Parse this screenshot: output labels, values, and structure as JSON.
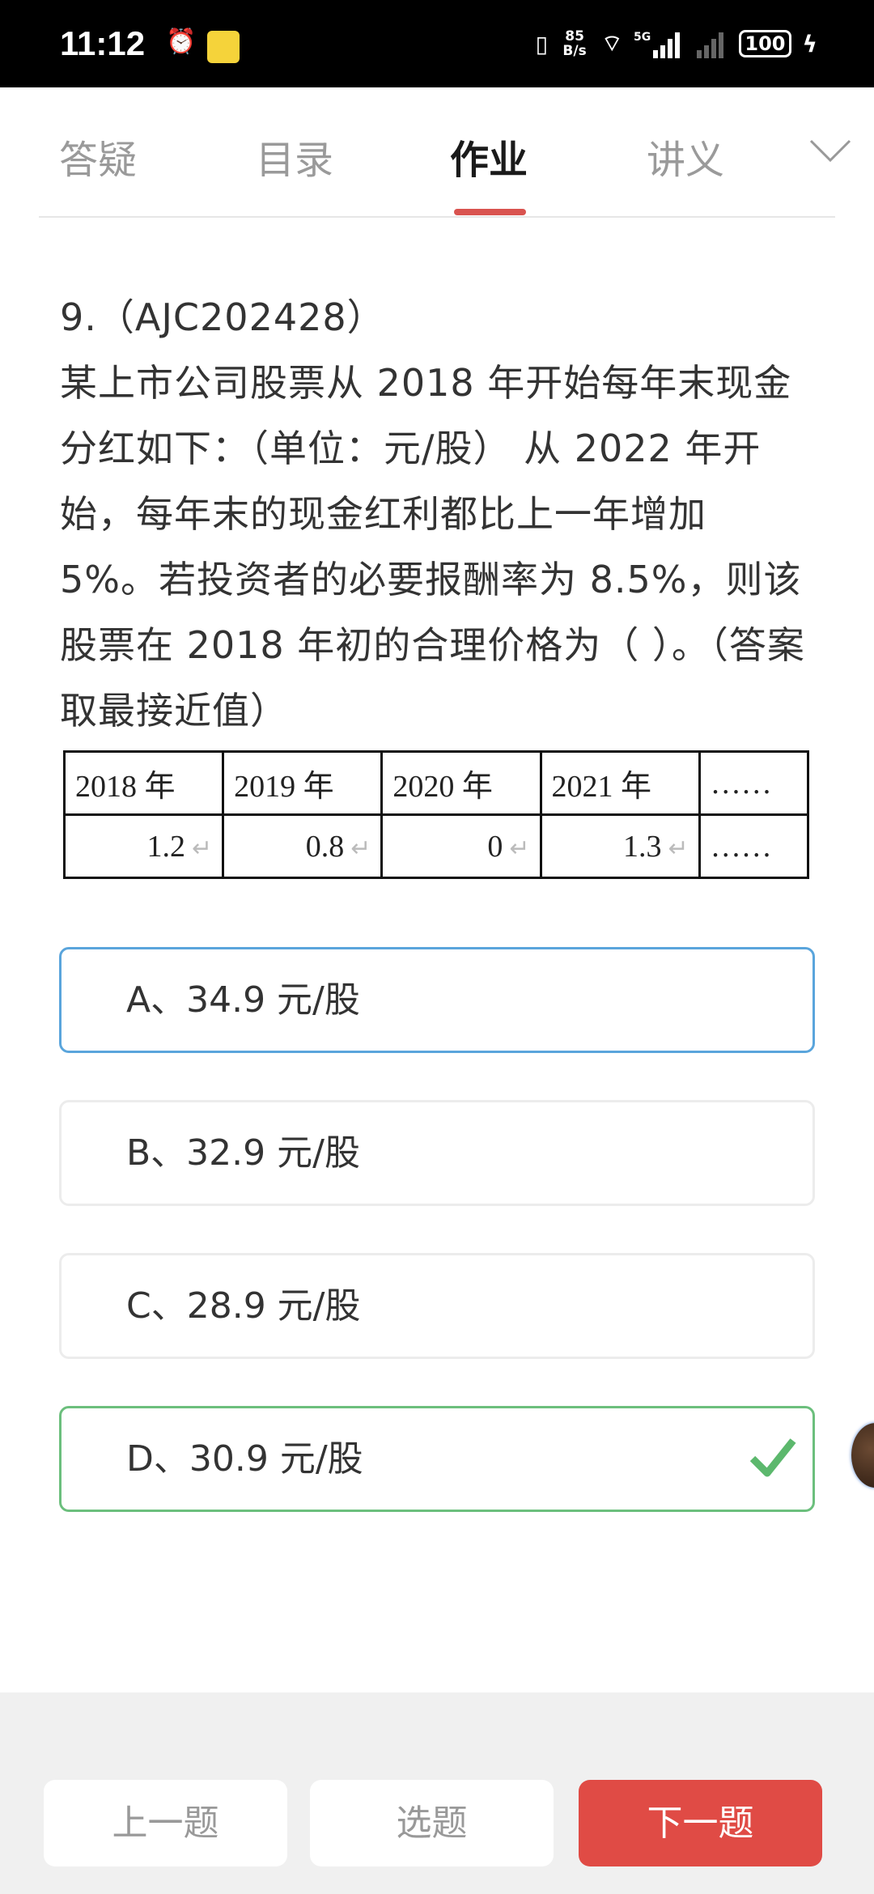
{
  "status_bar": {
    "time": "11:12",
    "network_speed": "85 B/s",
    "battery": "100",
    "icons": [
      "alarm-icon",
      "app-notification-icon",
      "vibrate-icon",
      "wifi-icon",
      "5g-signal-icon",
      "signal-icon",
      "battery-icon",
      "charging-icon"
    ]
  },
  "tabs": [
    {
      "label": "答疑"
    },
    {
      "label": "目录"
    },
    {
      "label": "作业",
      "active": true
    },
    {
      "label": "讲义"
    }
  ],
  "question": {
    "number": "9.（AJC202428）",
    "text": "某上市公司股票从 2018 年开始每年末现金分红如下：（单位：元/股） 从 2022 年开始，每年末的现金红利都比上一年增加 5%。若投资者的必要报酬率为 8.5%，则该股票在 2018 年初的合理价格为（ ）。（答案取最接近值）",
    "table": {
      "headers": [
        "2018 年",
        "2019 年",
        "2020 年",
        "2021 年",
        "……"
      ],
      "values": [
        "1.2",
        "0.8",
        "0",
        "1.3",
        "……"
      ]
    }
  },
  "options": [
    {
      "label": "A、34.9 元/股",
      "state": "selected"
    },
    {
      "label": "B、32.9 元/股",
      "state": "normal"
    },
    {
      "label": "C、28.9 元/股",
      "state": "normal"
    },
    {
      "label": "D、30.9 元/股",
      "state": "correct"
    }
  ],
  "footer": {
    "prev": "上一题",
    "select": "选题",
    "next": "下一题"
  },
  "colors": {
    "accent": "#e04b45",
    "selected_border": "#5aa5dc",
    "correct": "#5cb86d"
  }
}
